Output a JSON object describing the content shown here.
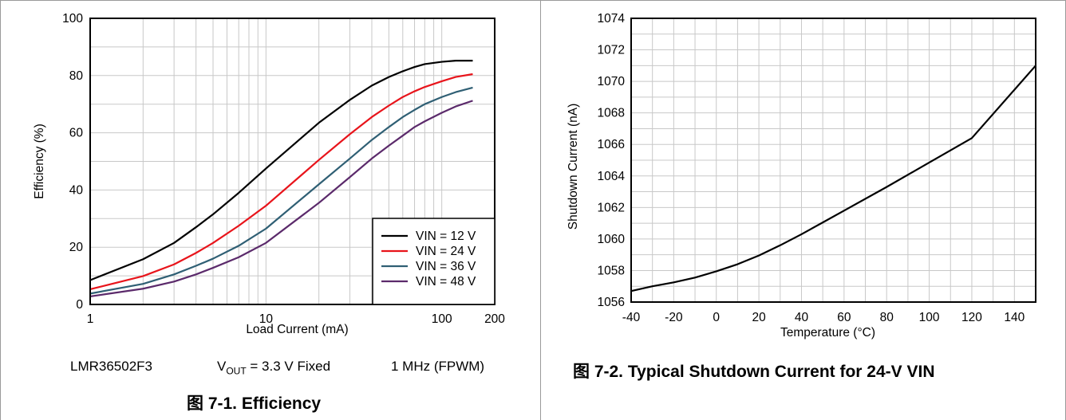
{
  "chart_data": [
    {
      "type": "line",
      "xscale": "log",
      "xlabel": "Load Current (mA)",
      "ylabel": "Efficiency (%)",
      "xlim": [
        1,
        200
      ],
      "ylim": [
        0,
        100
      ],
      "xticks": [
        1,
        10,
        100,
        200
      ],
      "xtick_labels": [
        "1",
        "10",
        "100",
        "200"
      ],
      "yticks": [
        0,
        20,
        40,
        60,
        80,
        100
      ],
      "grid": true,
      "legend_position": "bottom-right",
      "series": [
        {
          "name": "VIN = 12 V",
          "color": "#000000",
          "x": [
            1,
            2,
            3,
            4,
            5,
            7,
            10,
            20,
            30,
            40,
            50,
            60,
            70,
            80,
            100,
            120,
            150
          ],
          "y": [
            8.5,
            15.8,
            21.5,
            27,
            31.5,
            39,
            47.5,
            63.5,
            71.5,
            76.5,
            79.5,
            81.5,
            83,
            84,
            84.8,
            85.2,
            85.2
          ]
        },
        {
          "name": "VIN = 24 V",
          "color": "#e8141b",
          "x": [
            1,
            2,
            3,
            4,
            5,
            7,
            10,
            20,
            30,
            40,
            50,
            60,
            70,
            80,
            100,
            120,
            150
          ],
          "y": [
            5.3,
            9.9,
            14,
            18,
            21.5,
            27.5,
            34.5,
            50.5,
            59.5,
            65.5,
            69.5,
            72.5,
            74.5,
            76,
            78,
            79.5,
            80.5
          ]
        },
        {
          "name": "VIN = 36 V",
          "color": "#2f5f74",
          "x": [
            1,
            2,
            3,
            4,
            5,
            7,
            10,
            20,
            30,
            40,
            50,
            60,
            70,
            80,
            100,
            120,
            150
          ],
          "y": [
            3.8,
            7.2,
            10.5,
            13.5,
            16,
            20.5,
            26.5,
            42,
            51,
            57.5,
            62,
            65.5,
            68,
            70,
            72.5,
            74.2,
            75.8
          ]
        },
        {
          "name": "VIN = 48 V",
          "color": "#5b2a6b",
          "x": [
            1,
            2,
            3,
            4,
            5,
            7,
            10,
            20,
            30,
            40,
            50,
            60,
            70,
            80,
            100,
            120,
            150
          ],
          "y": [
            2.8,
            5.5,
            8,
            10.5,
            12.8,
            16.5,
            21.5,
            35.5,
            44.5,
            51,
            55.5,
            59,
            62,
            64,
            67,
            69.2,
            71.2
          ]
        }
      ]
    },
    {
      "type": "line",
      "xlabel": "Temperature (°C)",
      "ylabel": "Shutdown Current (nA)",
      "xlim": [
        -40,
        150
      ],
      "ylim": [
        1056,
        1074
      ],
      "xticks": [
        -40,
        -20,
        0,
        20,
        40,
        60,
        80,
        100,
        120,
        140
      ],
      "yticks": [
        1056,
        1058,
        1060,
        1062,
        1064,
        1066,
        1068,
        1070,
        1072,
        1074
      ],
      "grid": true,
      "series": [
        {
          "color": "#000000",
          "x": [
            -40,
            -30,
            -20,
            -10,
            0,
            10,
            20,
            30,
            40,
            50,
            60,
            80,
            100,
            120,
            150
          ],
          "y": [
            1056.7,
            1057.0,
            1057.25,
            1057.55,
            1057.95,
            1058.4,
            1058.95,
            1059.6,
            1060.3,
            1061.05,
            1061.8,
            1063.3,
            1064.85,
            1066.4,
            1071.0
          ]
        }
      ]
    }
  ],
  "left_panel": {
    "note_part": "LMR36502F3",
    "note_vout_prefix": "V",
    "note_vout_sub": "OUT",
    "note_vout_rest": " = 3.3 V Fixed",
    "note_freq": "1 MHz (FPWM)",
    "caption": "图 7-1. Efficiency"
  },
  "right_panel": {
    "caption": "图 7-2. Typical Shutdown Current for 24-V VIN"
  }
}
